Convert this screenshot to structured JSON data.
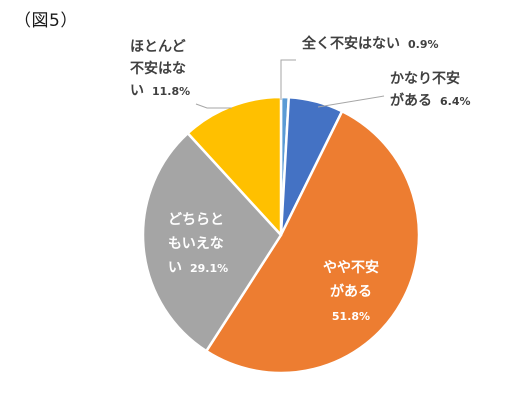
{
  "figure_label": "（図5）",
  "chart_data": {
    "type": "pie",
    "title": "",
    "start_angle_deg": 0,
    "direction": "clockwise",
    "slices": [
      {
        "name": "全く不安はない",
        "lines": [
          "全く不安はない"
        ],
        "value": 0.9,
        "value_label": "0.9%",
        "color": "#5B9BD5"
      },
      {
        "name": "かなり不安がある",
        "lines": [
          "かなり不安",
          "がある"
        ],
        "value": 6.4,
        "value_label": "6.4%",
        "color": "#4472C4"
      },
      {
        "name": "やや不安がある",
        "lines": [
          "やや不安",
          "がある"
        ],
        "value": 51.8,
        "value_label": "51.8%",
        "color": "#ED7D31"
      },
      {
        "name": "どちらともいえない",
        "lines": [
          "どちらと",
          "もいえな",
          "い"
        ],
        "value": 29.1,
        "value_label": "29.1%",
        "color": "#A5A5A5"
      },
      {
        "name": "ほとんど不安はない",
        "lines": [
          "ほとんど",
          "不安はな",
          "い"
        ],
        "value": 11.8,
        "value_label": "11.8%",
        "color": "#FFC000"
      }
    ]
  }
}
